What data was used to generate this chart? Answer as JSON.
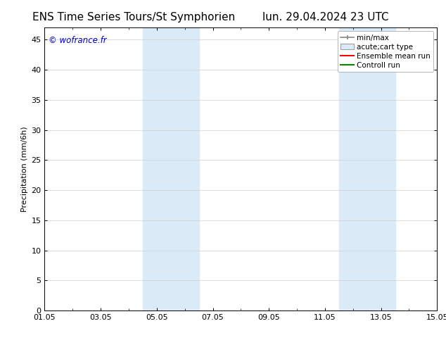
{
  "title_left": "ENS Time Series Tours/St Symphorien",
  "title_right": "lun. 29.04.2024 23 UTC",
  "ylabel": "Precipitation (mm/6h)",
  "watermark": "© wofrance.fr",
  "watermark_color": "#0000cc",
  "xmin": 0.0,
  "xmax": 14.0,
  "ymin": 0.0,
  "ymax": 47.0,
  "xtick_labels": [
    "01.05",
    "03.05",
    "05.05",
    "07.05",
    "09.05",
    "11.05",
    "13.05",
    "15.05"
  ],
  "xtick_positions": [
    0.0,
    2.0,
    4.0,
    6.0,
    8.0,
    10.0,
    12.0,
    14.0
  ],
  "ytick_positions": [
    0,
    5,
    10,
    15,
    20,
    25,
    30,
    35,
    40,
    45
  ],
  "shaded_regions": [
    {
      "xstart": 3.5,
      "xend": 5.5,
      "color": "#daeaf7"
    },
    {
      "xstart": 10.5,
      "xend": 12.5,
      "color": "#daeaf7"
    }
  ],
  "legend_entries": [
    {
      "label": "min/max",
      "color": "#888888",
      "type": "line_with_caps"
    },
    {
      "label": "acute;cart type",
      "color": "#daeaf7",
      "type": "box"
    },
    {
      "label": "Ensemble mean run",
      "color": "#ff0000",
      "type": "line"
    },
    {
      "label": "Controll run",
      "color": "#008800",
      "type": "line"
    }
  ],
  "bg_color": "#ffffff",
  "spine_color": "#000000",
  "grid_color": "#cccccc",
  "title_fontsize": 11,
  "tick_fontsize": 8,
  "legend_fontsize": 7.5,
  "ylabel_fontsize": 8
}
